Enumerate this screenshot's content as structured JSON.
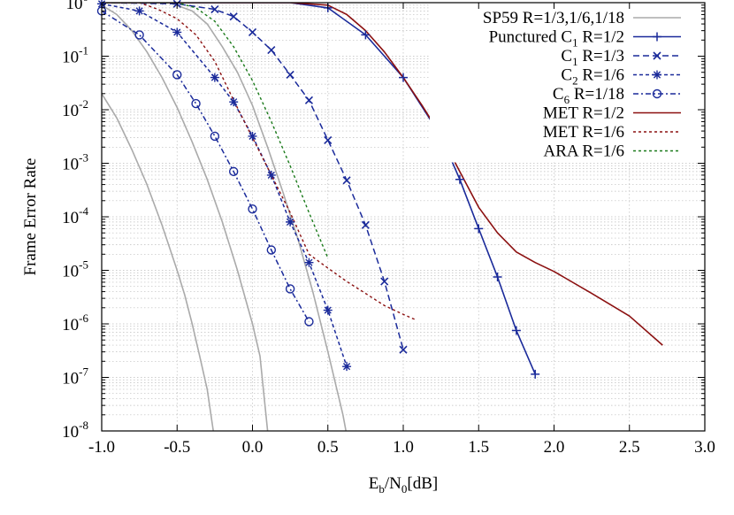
{
  "chart_data": {
    "type": "line",
    "title": "",
    "xlabel": {
      "base": "E",
      "sub1": "b",
      "mid": "/N",
      "sub2": "0",
      "tail": "[dB]"
    },
    "ylabel": "Frame Error Rate",
    "xlim": [
      -1.0,
      3.0
    ],
    "ylim": [
      1e-08,
      1
    ],
    "yscale": "log",
    "grid": true,
    "legend_position": "top-right",
    "x_ticks": [
      "-1.0",
      "-0.5",
      "0.0",
      "0.5",
      "1.0",
      "1.5",
      "2.0",
      "2.5",
      "3.0"
    ],
    "y_ticks": [
      {
        "base": "10",
        "exp": "0"
      },
      {
        "base": "10",
        "exp": "-1"
      },
      {
        "base": "10",
        "exp": "-2"
      },
      {
        "base": "10",
        "exp": "-3"
      },
      {
        "base": "10",
        "exp": "-4"
      },
      {
        "base": "10",
        "exp": "-5"
      },
      {
        "base": "10",
        "exp": "-6"
      },
      {
        "base": "10",
        "exp": "-7"
      },
      {
        "base": "10",
        "exp": "-8"
      }
    ],
    "series": [
      {
        "legend": {
          "pre": "SP59 R=1/3,1/6,1/18",
          "sub": "",
          "post": ""
        },
        "color": "#aaaaaa",
        "dash": "",
        "marker": "none",
        "width": 1.6,
        "curves": [
          [
            [
              -1.0,
              0.02
            ],
            [
              -0.9,
              0.007
            ],
            [
              -0.8,
              0.0018
            ],
            [
              -0.7,
              0.0004
            ],
            [
              -0.6,
              7e-05
            ],
            [
              -0.5,
              1e-05
            ],
            [
              -0.45,
              3.5e-06
            ],
            [
              -0.4,
              1e-06
            ],
            [
              -0.35,
              2.5e-07
            ],
            [
              -0.3,
              6e-08
            ],
            [
              -0.26,
              1e-08
            ]
          ],
          [
            [
              -1.0,
              0.9
            ],
            [
              -0.9,
              0.6
            ],
            [
              -0.8,
              0.3
            ],
            [
              -0.7,
              0.12
            ],
            [
              -0.6,
              0.04
            ],
            [
              -0.5,
              0.011
            ],
            [
              -0.4,
              0.0025
            ],
            [
              -0.3,
              0.0005
            ],
            [
              -0.2,
              8e-05
            ],
            [
              -0.1,
              1e-05
            ],
            [
              0.0,
              1e-06
            ],
            [
              0.05,
              2.5e-07
            ],
            [
              0.1,
              1e-08
            ]
          ],
          [
            [
              -0.55,
              1.0
            ],
            [
              -0.4,
              0.7
            ],
            [
              -0.3,
              0.4
            ],
            [
              -0.2,
              0.15
            ],
            [
              -0.1,
              0.05
            ],
            [
              0.0,
              0.012
            ],
            [
              0.1,
              0.002
            ],
            [
              0.2,
              0.0003
            ],
            [
              0.3,
              4e-05
            ],
            [
              0.4,
              4e-06
            ],
            [
              0.5,
              3e-07
            ],
            [
              0.6,
              2e-08
            ],
            [
              0.62,
              1e-08
            ]
          ]
        ]
      },
      {
        "legend": {
          "pre": "Punctured C",
          "sub": "1",
          "post": " R=1/2"
        },
        "color": "#1a2a9a",
        "dash": "",
        "marker": "plus",
        "width": 1.6,
        "points": [
          [
            -1.0,
            1.0
          ],
          [
            0.0,
            1.0
          ],
          [
            0.25,
            1.0
          ],
          [
            0.5,
            0.8
          ],
          [
            0.75,
            0.25
          ],
          [
            1.0,
            0.04
          ],
          [
            1.25,
            0.0032
          ],
          [
            1.375,
            0.0005
          ],
          [
            1.5,
            6e-05
          ],
          [
            1.625,
            7.5e-06
          ],
          [
            1.75,
            7.5e-07
          ],
          [
            1.875,
            1.15e-07
          ]
        ]
      },
      {
        "legend": {
          "pre": "C",
          "sub": "1",
          "post": " R=1/3"
        },
        "color": "#1a2a9a",
        "dash": "7,4",
        "marker": "x",
        "width": 1.5,
        "points": [
          [
            -1.0,
            1.0
          ],
          [
            -0.5,
            0.95
          ],
          [
            -0.25,
            0.75
          ],
          [
            -0.125,
            0.55
          ],
          [
            0.0,
            0.28
          ],
          [
            0.125,
            0.13
          ],
          [
            0.25,
            0.045
          ],
          [
            0.375,
            0.015
          ],
          [
            0.5,
            0.0027
          ],
          [
            0.625,
            0.00048
          ],
          [
            0.75,
            7e-05
          ],
          [
            0.875,
            6.2e-06
          ],
          [
            1.0,
            3.3e-07
          ]
        ]
      },
      {
        "legend": {
          "pre": "C",
          "sub": "2",
          "post": " R=1/6"
        },
        "color": "#1a2a9a",
        "dash": "4,3",
        "marker": "star",
        "width": 1.5,
        "points": [
          [
            -1.0,
            0.95
          ],
          [
            -0.75,
            0.7
          ],
          [
            -0.5,
            0.28
          ],
          [
            -0.25,
            0.04
          ],
          [
            -0.125,
            0.014
          ],
          [
            0.0,
            0.0032
          ],
          [
            0.125,
            0.0006
          ],
          [
            0.25,
            8e-05
          ],
          [
            0.375,
            1.4e-05
          ],
          [
            0.5,
            1.8e-06
          ],
          [
            0.625,
            1.6e-07
          ]
        ]
      },
      {
        "legend": {
          "pre": "C",
          "sub": "6",
          "post": " R=1/18"
        },
        "color": "#1a2a9a",
        "dash": "6,3,2,3",
        "marker": "circle",
        "width": 1.5,
        "points": [
          [
            -1.0,
            0.7
          ],
          [
            -0.75,
            0.25
          ],
          [
            -0.5,
            0.045
          ],
          [
            -0.375,
            0.013
          ],
          [
            -0.25,
            0.0032
          ],
          [
            -0.125,
            0.0007
          ],
          [
            0.0,
            0.00014
          ],
          [
            0.125,
            2.4e-05
          ],
          [
            0.25,
            4.5e-06
          ],
          [
            0.375,
            1.1e-06
          ]
        ]
      },
      {
        "legend": {
          "pre": "MET R=1/2",
          "sub": "",
          "post": ""
        },
        "color": "#8b1010",
        "dash": "",
        "marker": "none",
        "width": 1.6,
        "points": [
          [
            -1.0,
            1.0
          ],
          [
            0.25,
            1.0
          ],
          [
            0.5,
            0.9
          ],
          [
            0.625,
            0.6
          ],
          [
            0.75,
            0.3
          ],
          [
            0.875,
            0.12
          ],
          [
            1.0,
            0.04
          ],
          [
            1.125,
            0.012
          ],
          [
            1.25,
            0.0033
          ],
          [
            1.375,
            0.0007
          ],
          [
            1.5,
            0.00015
          ],
          [
            1.625,
            5e-05
          ],
          [
            1.75,
            2.2e-05
          ],
          [
            1.875,
            1.4e-05
          ],
          [
            2.0,
            9.5e-06
          ],
          [
            2.25,
            3.7e-06
          ],
          [
            2.5,
            1.4e-06
          ],
          [
            2.72,
            4e-07
          ]
        ]
      },
      {
        "legend": {
          "pre": "MET R=1/6",
          "sub": "",
          "post": ""
        },
        "color": "#8b1010",
        "dash": "3,3",
        "marker": "none",
        "width": 1.4,
        "points": [
          [
            -1.0,
            1.0
          ],
          [
            -0.75,
            1.0
          ],
          [
            -0.625,
            0.75
          ],
          [
            -0.5,
            0.5
          ],
          [
            -0.375,
            0.25
          ],
          [
            -0.25,
            0.08
          ],
          [
            -0.125,
            0.015
          ],
          [
            0.0,
            0.003
          ],
          [
            0.125,
            0.0006
          ],
          [
            0.25,
            0.00012
          ],
          [
            0.375,
            2e-05
          ],
          [
            0.5,
            1.1e-05
          ],
          [
            0.625,
            6.2e-06
          ],
          [
            0.75,
            3.7e-06
          ],
          [
            0.875,
            2.2e-06
          ],
          [
            1.0,
            1.5e-06
          ],
          [
            1.08,
            1.2e-06
          ]
        ]
      },
      {
        "legend": {
          "pre": "ARA R=1/6",
          "sub": "",
          "post": ""
        },
        "color": "#1a7a1a",
        "dash": "3,3",
        "marker": "none",
        "width": 1.4,
        "points": [
          [
            -1.0,
            1.0
          ],
          [
            -0.5,
            1.0
          ],
          [
            -0.375,
            0.8
          ],
          [
            -0.25,
            0.45
          ],
          [
            -0.125,
            0.15
          ],
          [
            0.0,
            0.035
          ],
          [
            0.125,
            0.006
          ],
          [
            0.25,
            0.0009
          ],
          [
            0.375,
            0.00012
          ],
          [
            0.5,
            1.7e-05
          ]
        ]
      }
    ]
  }
}
